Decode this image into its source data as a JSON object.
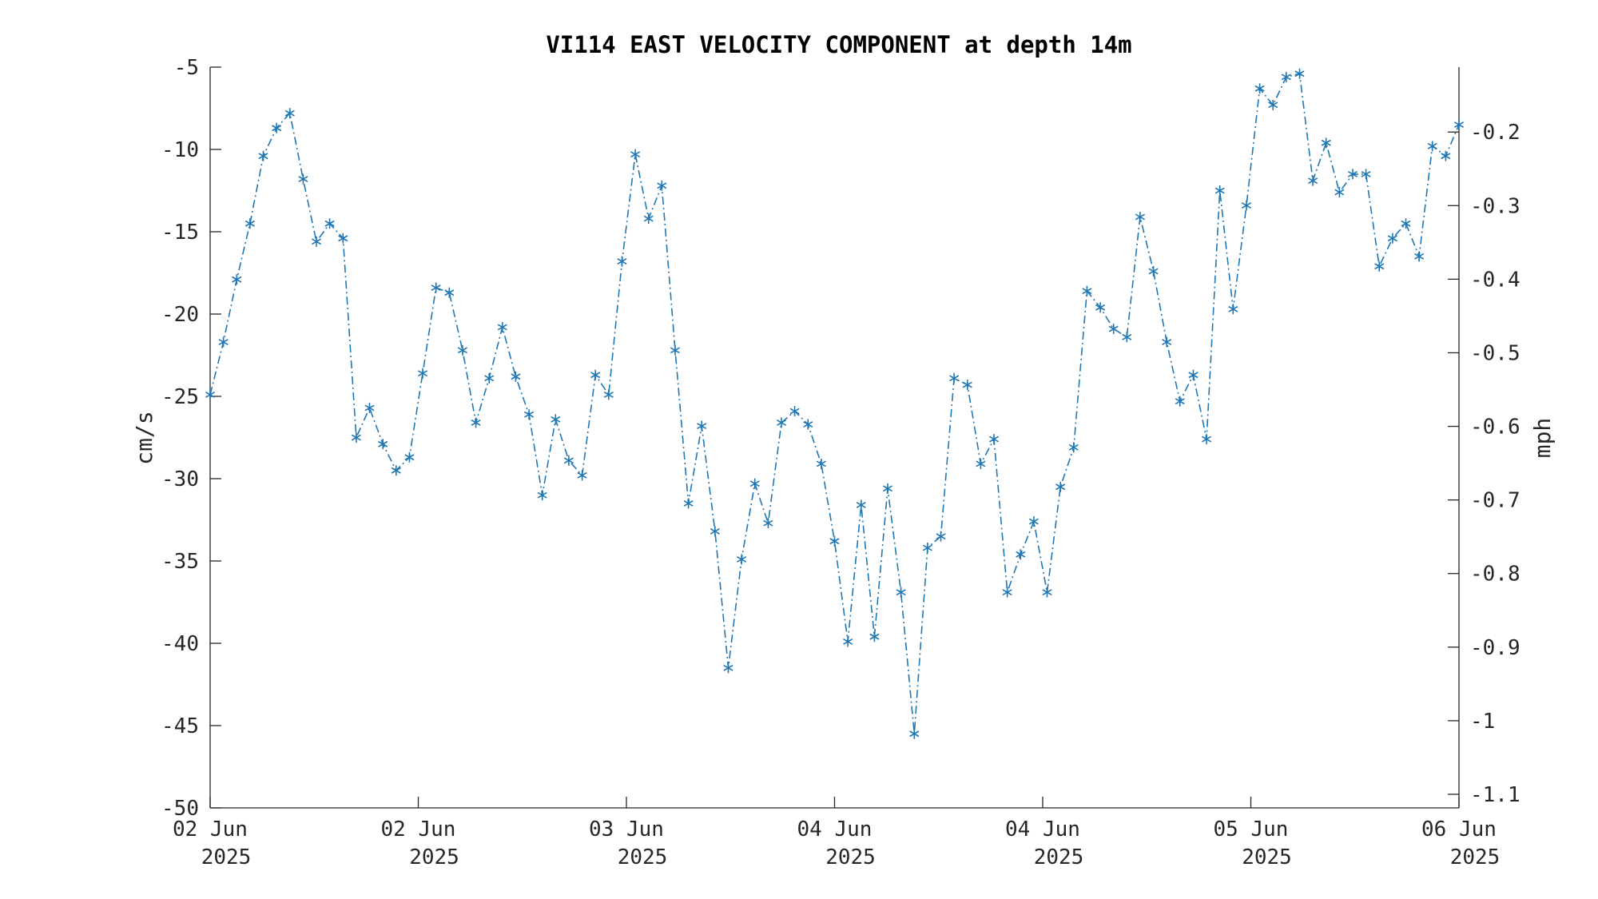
{
  "chart_data": {
    "type": "line",
    "title": "VI114 EAST VELOCITY COMPONENT at depth 14m",
    "ylabel": "cm/s",
    "ylabel_right": "mph",
    "ylim": [
      -50,
      -5
    ],
    "ylim_right_mph": [
      -1.1185,
      -0.1118
    ],
    "y_ticks": [
      "-5",
      "-10",
      "-15",
      "-20",
      "-25",
      "-30",
      "-35",
      "-40",
      "-45",
      "-50"
    ],
    "y_ticks_right": [
      "-0.2",
      "-0.3",
      "-0.4",
      "-0.5",
      "-0.6",
      "-0.7",
      "-0.8",
      "-0.9",
      "-1",
      "-1.1"
    ],
    "x_ticks": [
      {
        "day": "02 Jun",
        "year": "2025"
      },
      {
        "day": "02 Jun",
        "year": "2025"
      },
      {
        "day": "03 Jun",
        "year": "2025"
      },
      {
        "day": "04 Jun",
        "year": "2025"
      },
      {
        "day": "04 Jun",
        "year": "2025"
      },
      {
        "day": "05 Jun",
        "year": "2025"
      },
      {
        "day": "06 Jun",
        "year": "2025"
      }
    ],
    "grid": false,
    "marker": "asterisk",
    "line_style": "dash-dot",
    "color": "#1f77b4",
    "series": [
      {
        "values": [
          -24.9,
          -21.7,
          -17.9,
          -14.5,
          -10.4,
          -8.7,
          -7.8,
          -11.8,
          -15.6,
          -14.5,
          -15.4,
          -27.5,
          -25.7,
          -27.9,
          -29.5,
          -28.7,
          -23.6,
          -18.4,
          -18.7,
          -22.2,
          -26.6,
          -23.9,
          -20.8,
          -23.8,
          -26.1,
          -31.0,
          -26.4,
          -28.9,
          -29.8,
          -23.7,
          -24.9,
          -16.8,
          -10.3,
          -14.2,
          -12.2,
          -22.2,
          -31.5,
          -26.8,
          -33.2,
          -41.5,
          -34.9,
          -30.3,
          -32.7,
          -26.6,
          -25.9,
          -26.7,
          -29.1,
          -33.8,
          -39.9,
          -31.6,
          -39.6,
          -30.6,
          -36.9,
          -45.5,
          -34.2,
          -33.5,
          -23.9,
          -24.3,
          -29.1,
          -27.6,
          -36.9,
          -34.6,
          -32.6,
          -36.9,
          -30.5,
          -28.1,
          -18.6,
          -19.6,
          -20.9,
          -21.4,
          -14.1,
          -17.4,
          -21.7,
          -25.3,
          -23.7,
          -27.6,
          -12.5,
          -19.7,
          -13.4,
          -6.3,
          -7.3,
          -5.6,
          -5.4,
          -11.9,
          -9.6,
          -12.6,
          -11.5,
          -11.5,
          -17.1,
          -15.4,
          -14.5,
          -16.5,
          -9.8,
          -10.4,
          -8.5
        ]
      }
    ]
  }
}
